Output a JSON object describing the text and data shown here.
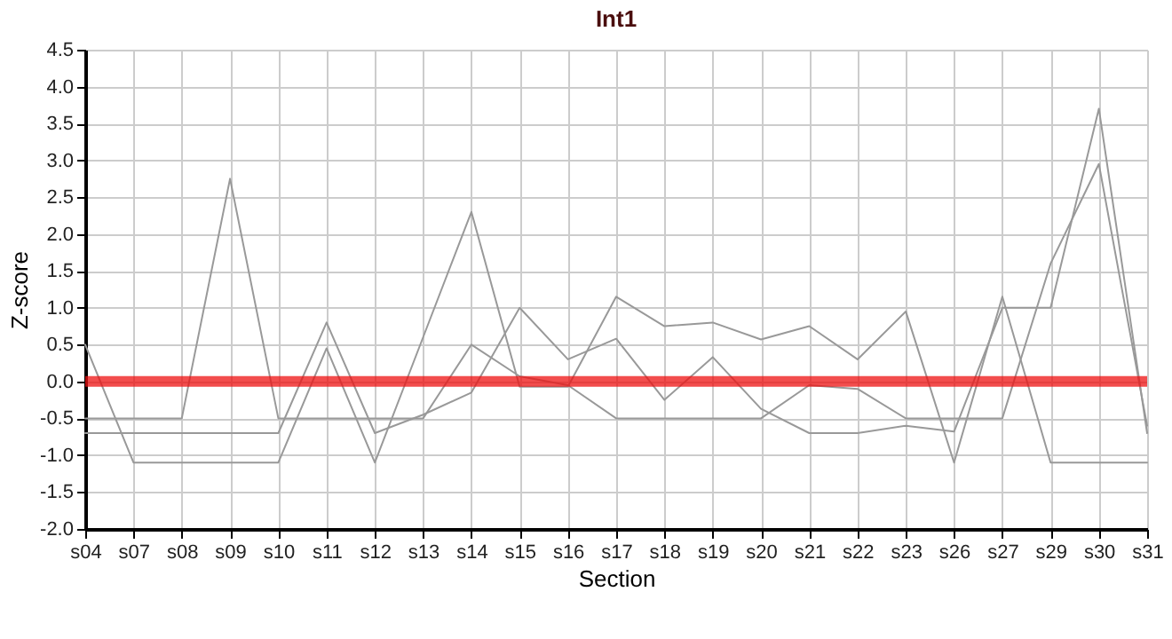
{
  "chart_data": {
    "type": "line",
    "title": "Int1",
    "xlabel": "Section",
    "ylabel": "Z-score",
    "categories": [
      "s04",
      "s07",
      "s08",
      "s09",
      "s10",
      "s11",
      "s12",
      "s13",
      "s14",
      "s15",
      "s16",
      "s17",
      "s18",
      "s19",
      "s20",
      "s21",
      "s22",
      "s23",
      "s26",
      "s27",
      "s29",
      "s30",
      "s31"
    ],
    "series": [
      {
        "color": "#999999",
        "values": [
          0.5,
          -1.1,
          -1.1,
          -1.1,
          -1.1,
          0.45,
          -1.1,
          0.6,
          2.3,
          -0.07,
          -0.07,
          1.15,
          0.75,
          0.8,
          0.57,
          0.75,
          0.3,
          0.95,
          -1.1,
          1.15,
          -1.1,
          -1.1,
          -1.1
        ]
      },
      {
        "color": "#999999",
        "values": [
          -0.5,
          -0.5,
          -0.5,
          2.75,
          -0.5,
          -0.5,
          -0.5,
          -0.5,
          0.5,
          0.07,
          -0.05,
          -0.5,
          -0.5,
          -0.5,
          -0.5,
          -0.05,
          -0.1,
          -0.5,
          -0.5,
          -0.5,
          1.6,
          2.95,
          -0.6
        ]
      },
      {
        "color": "#999999",
        "values": [
          -0.7,
          -0.7,
          -0.7,
          -0.7,
          -0.7,
          0.8,
          -0.7,
          -0.45,
          -0.15,
          1.0,
          0.3,
          0.58,
          -0.25,
          0.33,
          -0.37,
          -0.7,
          -0.7,
          -0.6,
          -0.68,
          1.0,
          1.0,
          3.7,
          -0.7
        ]
      }
    ],
    "ylim": [
      -2.0,
      4.5
    ],
    "yticks": [
      {
        "value": -2,
        "label": "-2.0"
      },
      {
        "value": -1.5,
        "label": "-1.5"
      },
      {
        "value": -1,
        "label": "-1.0"
      },
      {
        "value": -0.5,
        "label": "-0.5"
      },
      {
        "value": 0,
        "label": "0.0"
      },
      {
        "value": 0.5,
        "label": "0.5"
      },
      {
        "value": 1,
        "label": "1.0"
      },
      {
        "value": 1.5,
        "label": "1.5"
      },
      {
        "value": 2,
        "label": "2.0"
      },
      {
        "value": 2.5,
        "label": "2.5"
      },
      {
        "value": 3,
        "label": "3.0"
      },
      {
        "value": 3.5,
        "label": "3.5"
      },
      {
        "value": 4,
        "label": "4.0"
      },
      {
        "value": 4.5,
        "label": "4.5"
      }
    ],
    "ref_lines": [
      {
        "axis": "y",
        "value": 0,
        "color": "#ee1111"
      }
    ],
    "grid": true,
    "line_style": "solid"
  }
}
